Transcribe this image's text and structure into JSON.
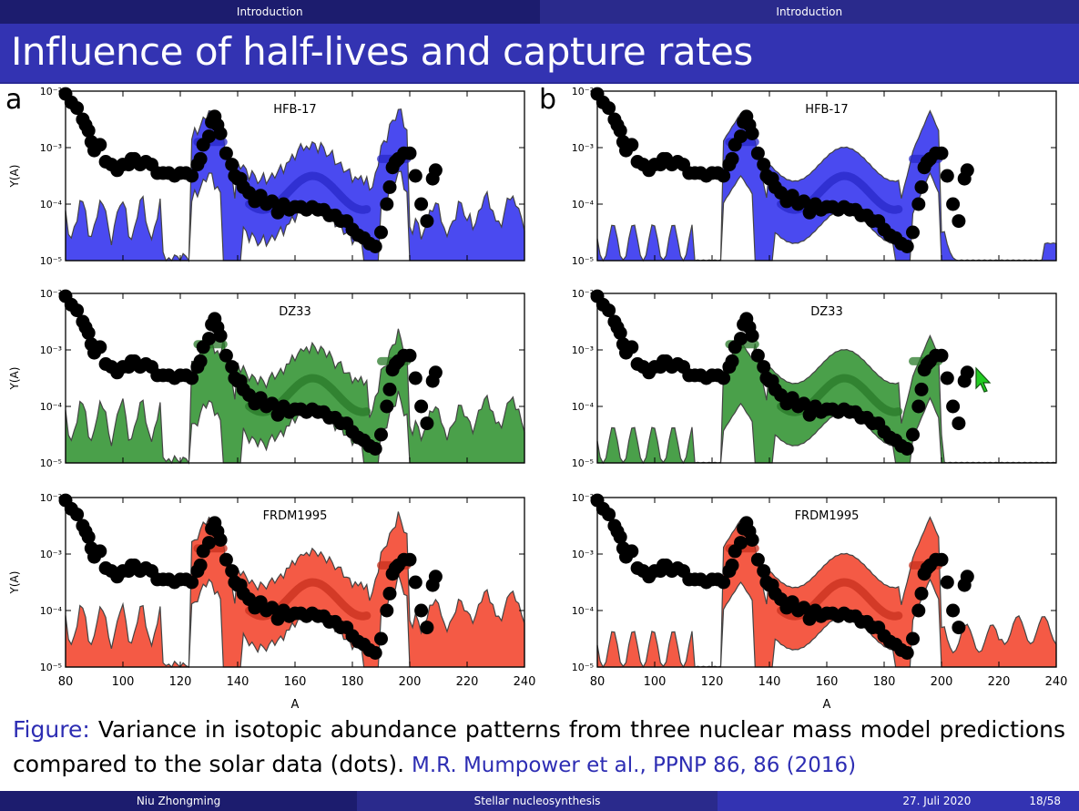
{
  "header": {
    "left_section": "Introduction",
    "right_section": "Introduction"
  },
  "slide": {
    "title": "Influence of half-lives and capture rates"
  },
  "panels": {
    "a": "a",
    "b": "b"
  },
  "caption": {
    "label": "Figure:",
    "text": " Variance in isotopic abundance patterns from three nuclear mass model predictions compared to the solar data (dots).",
    "reference": "M.R. Mumpower et al., PPNP 86, 86 (2016)"
  },
  "footer": {
    "author": "Niu Zhongming",
    "topic": "Stellar nucleosynthesis",
    "date": "27. Juli 2020",
    "page": "18/58"
  },
  "colors": {
    "blue": "#4444ee",
    "green": "#3f9a3f",
    "red": "#f04a35"
  },
  "chart_data": [
    {
      "type": "area",
      "panel": "a",
      "model": "HFB-17",
      "color": "blue",
      "ylabel": "Y(A)",
      "xlabel": "",
      "xlim": [
        80,
        240
      ],
      "ylim_log10": [
        -5,
        -2
      ],
      "show_xticks": false
    },
    {
      "type": "area",
      "panel": "b",
      "model": "HFB-17",
      "color": "blue",
      "ylabel": "",
      "xlabel": "",
      "xlim": [
        80,
        240
      ],
      "ylim_log10": [
        -5,
        -2
      ],
      "show_xticks": false
    },
    {
      "type": "area",
      "panel": "a",
      "model": "DZ33",
      "color": "green",
      "ylabel": "Y(A)",
      "xlabel": "",
      "xlim": [
        80,
        240
      ],
      "ylim_log10": [
        -5,
        -2
      ],
      "show_xticks": false
    },
    {
      "type": "area",
      "panel": "b",
      "model": "DZ33",
      "color": "green",
      "ylabel": "",
      "xlabel": "",
      "xlim": [
        80,
        240
      ],
      "ylim_log10": [
        -5,
        -2
      ],
      "show_xticks": false
    },
    {
      "type": "area",
      "panel": "a",
      "model": "FRDM1995",
      "color": "red",
      "ylabel": "Y(A)",
      "xlabel": "A",
      "xlim": [
        80,
        240
      ],
      "ylim_log10": [
        -5,
        -2
      ],
      "show_xticks": true
    },
    {
      "type": "area",
      "panel": "b",
      "model": "FRDM1995",
      "color": "red",
      "ylabel": "",
      "xlabel": "A",
      "xlim": [
        80,
        240
      ],
      "ylim_log10": [
        -5,
        -2
      ],
      "show_xticks": true
    }
  ],
  "axis": {
    "x_ticks": [
      80,
      100,
      120,
      140,
      160,
      180,
      200,
      220,
      240
    ],
    "y_ticks": [
      {
        "exp": -2,
        "label": "10⁻²"
      },
      {
        "exp": -3,
        "label": "10⁻³"
      },
      {
        "exp": -4,
        "label": "10⁻⁴"
      },
      {
        "exp": -5,
        "label": "10⁻⁵"
      }
    ]
  },
  "solar": {
    "A": [
      80,
      82,
      84,
      86,
      87,
      88,
      89,
      90,
      92,
      94,
      96,
      98,
      100,
      102,
      103,
      104,
      106,
      108,
      110,
      112,
      114,
      116,
      118,
      120,
      122,
      124,
      126,
      127,
      128,
      130,
      131,
      132,
      133,
      134,
      136,
      138,
      139,
      140,
      141,
      142,
      144,
      146,
      148,
      150,
      152,
      154,
      156,
      158,
      160,
      162,
      164,
      166,
      168,
      170,
      172,
      174,
      176,
      178,
      180,
      182,
      184,
      186,
      188,
      190,
      192,
      193,
      194,
      195,
      196,
      198,
      200,
      202,
      204,
      206,
      208,
      209
    ],
    "log10Y": [
      -2.05,
      -2.2,
      -2.3,
      -2.5,
      -2.6,
      -2.7,
      -2.9,
      -3.05,
      -2.95,
      -3.25,
      -3.3,
      -3.4,
      -3.3,
      -3.3,
      -3.2,
      -3.2,
      -3.3,
      -3.25,
      -3.3,
      -3.45,
      -3.45,
      -3.45,
      -3.5,
      -3.45,
      -3.45,
      -3.5,
      -3.3,
      -3.2,
      -2.95,
      -2.8,
      -2.55,
      -2.45,
      -2.6,
      -2.75,
      -3.1,
      -3.3,
      -3.5,
      -3.55,
      -3.55,
      -3.7,
      -3.8,
      -3.95,
      -3.85,
      -4.0,
      -3.95,
      -4.15,
      -4.0,
      -4.1,
      -4.05,
      -4.05,
      -4.1,
      -4.05,
      -4.1,
      -4.1,
      -4.2,
      -4.2,
      -4.3,
      -4.3,
      -4.45,
      -4.55,
      -4.6,
      -4.7,
      -4.75,
      -4.5,
      -4.0,
      -3.7,
      -3.35,
      -3.25,
      -3.2,
      -3.1,
      -3.1,
      -3.5,
      -4.0,
      -4.3,
      -3.55,
      -3.4
    ]
  }
}
